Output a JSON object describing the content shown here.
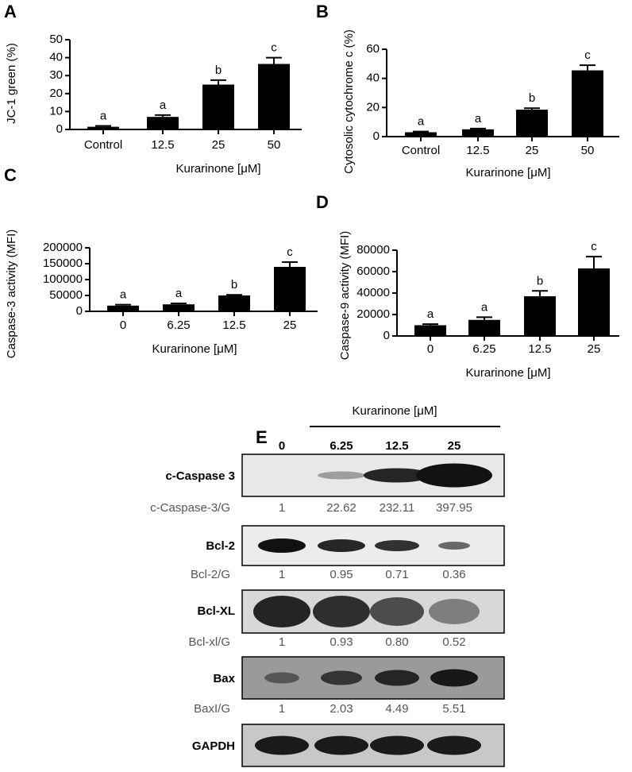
{
  "chart_data": [
    {
      "type": "bar",
      "panel": "A",
      "ylabel": "JC-1 green (%)",
      "xlabel": "Kurarinone [μM]",
      "categories": [
        "Control",
        "12.5",
        "25",
        "50"
      ],
      "values": [
        1.5,
        7,
        25,
        36.5
      ],
      "errors": [
        0.5,
        1,
        2.5,
        3.5
      ],
      "annotations": [
        "a",
        "a",
        "b",
        "c"
      ],
      "color": "#000000",
      "ylim": [
        0,
        50
      ],
      "yticks": [
        0,
        10,
        20,
        30,
        40,
        50
      ]
    },
    {
      "type": "bar",
      "panel": "B",
      "ylabel": "Cytosolic cytochrome c (%)",
      "xlabel": "Kurarinone [μM]",
      "categories": [
        "Control",
        "12.5",
        "25",
        "50"
      ],
      "values": [
        3,
        5,
        18.5,
        45.5
      ],
      "errors": [
        0.5,
        0.5,
        1,
        3.5
      ],
      "annotations": [
        "a",
        "a",
        "b",
        "c"
      ],
      "color": "#000000",
      "ylim": [
        0,
        60
      ],
      "yticks": [
        0,
        20,
        40,
        60
      ]
    },
    {
      "type": "bar",
      "panel": "C",
      "ylabel": "Caspase-3 activity (MFI)",
      "xlabel": "Kurarinone [μM]",
      "categories": [
        "0",
        "6.25",
        "12.5",
        "25"
      ],
      "values": [
        18000,
        22000,
        50000,
        140000
      ],
      "errors": [
        3000,
        3000,
        2000,
        15000
      ],
      "annotations": [
        "a",
        "a",
        "b",
        "c"
      ],
      "color": "#000000",
      "ylim": [
        0,
        200000
      ],
      "yticks": [
        0,
        50000,
        100000,
        150000,
        200000
      ]
    },
    {
      "type": "bar",
      "panel": "D",
      "ylabel": "Caspase-9 activity (MFI)",
      "xlabel": "Kurarinone [μM]",
      "categories": [
        "0",
        "6.25",
        "12.5",
        "25"
      ],
      "values": [
        10000,
        15000,
        37000,
        63000
      ],
      "errors": [
        1000,
        2500,
        5000,
        11000
      ],
      "annotations": [
        "a",
        "a",
        "b",
        "c"
      ],
      "color": "#000000",
      "ylim": [
        0,
        80000
      ],
      "yticks": [
        0,
        20000,
        40000,
        60000,
        80000
      ]
    }
  ],
  "blot": {
    "panel": "E",
    "treatment": "Kurarinone [μM]",
    "lanes": [
      "0",
      "6.25",
      "12.5",
      "25"
    ],
    "rows": [
      {
        "protein": "c-Caspase 3",
        "ratio_label": "c-Caspase-3/G",
        "ratios": [
          "1",
          "22.62",
          "232.11",
          "397.95"
        ]
      },
      {
        "protein": "Bcl-2",
        "ratio_label": "Bcl-2/G",
        "ratios": [
          "1",
          "0.95",
          "0.71",
          "0.36"
        ]
      },
      {
        "protein": "Bcl-XL",
        "ratio_label": "Bcl-xl/G",
        "ratios": [
          "1",
          "0.93",
          "0.80",
          "0.52"
        ]
      },
      {
        "protein": "Bax",
        "ratio_label": "BaxI/G",
        "ratios": [
          "1",
          "2.03",
          "4.49",
          "5.51"
        ]
      },
      {
        "protein": "GAPDH"
      }
    ]
  }
}
